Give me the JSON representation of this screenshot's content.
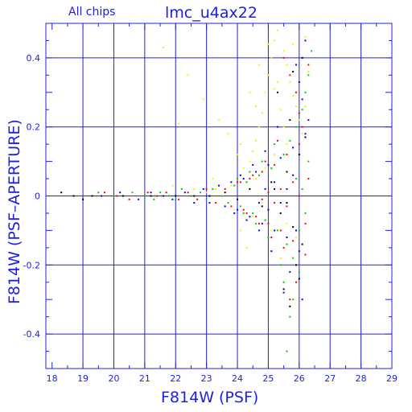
{
  "chart_data": {
    "type": "scatter",
    "title": "lmc_u4ax22",
    "subtitle": "All chips",
    "xlabel": "F814W (PSF)",
    "ylabel": "F814W (PSF–APERTURE)",
    "xlim": [
      17.8,
      29
    ],
    "ylim": [
      -0.5,
      0.5
    ],
    "x_ticks": [
      18,
      19,
      20,
      21,
      22,
      23,
      24,
      25,
      26,
      27,
      28,
      29
    ],
    "y_ticks": [
      -0.4,
      -0.2,
      0,
      0.2,
      0.4
    ],
    "x_tick_labels": [
      "18",
      "19",
      "20",
      "21",
      "22",
      "23",
      "24",
      "25",
      "26",
      "27",
      "28",
      "29"
    ],
    "y_tick_labels": [
      "-0.4",
      "-0.2",
      "0",
      "0.2",
      "0.4"
    ],
    "grid": true,
    "colors": {
      "axis": "#2020e0",
      "grid": "#2020e0",
      "background": "#ffffff"
    },
    "series": [
      {
        "color": "#ffee00",
        "points": [
          [
            23.3,
            0.02
          ],
          [
            23.8,
            0.03
          ],
          [
            24.0,
            0.05
          ],
          [
            24.2,
            0.08
          ],
          [
            24.4,
            0.1
          ],
          [
            24.5,
            0.13
          ],
          [
            24.6,
            0.16
          ],
          [
            24.7,
            0.2
          ],
          [
            24.8,
            0.24
          ],
          [
            24.9,
            0.3
          ],
          [
            25.0,
            0.35
          ],
          [
            25.1,
            0.4
          ],
          [
            25.2,
            0.45
          ],
          [
            25.3,
            0.48
          ],
          [
            25.5,
            0.42
          ],
          [
            25.6,
            0.38
          ],
          [
            25.7,
            0.33
          ],
          [
            25.8,
            0.29
          ],
          [
            25.9,
            0.26
          ],
          [
            26.0,
            0.22
          ],
          [
            26.1,
            0.18
          ],
          [
            26.2,
            0.46
          ],
          [
            26.3,
            0.36
          ],
          [
            25.4,
            0.25
          ],
          [
            25.5,
            0.2
          ],
          [
            25.6,
            0.15
          ],
          [
            25.2,
            0.12
          ],
          [
            24.9,
            0.08
          ],
          [
            24.6,
            0.05
          ],
          [
            24.3,
            0.04
          ],
          [
            21.6,
            0.43
          ],
          [
            22.4,
            0.35
          ],
          [
            22.9,
            0.28
          ],
          [
            23.4,
            0.22
          ],
          [
            23.7,
            0.18
          ],
          [
            24.1,
            0.15
          ],
          [
            24.4,
            0.3
          ],
          [
            24.7,
            0.38
          ],
          [
            25.0,
            0.44
          ],
          [
            25.3,
            0.33
          ],
          [
            23.5,
            0.0
          ],
          [
            23.9,
            -0.04
          ],
          [
            24.1,
            -0.1
          ],
          [
            24.3,
            -0.15
          ],
          [
            24.5,
            -0.06
          ],
          [
            24.8,
            -0.02
          ],
          [
            25.1,
            -0.1
          ],
          [
            25.4,
            -0.18
          ],
          [
            25.6,
            -0.08
          ],
          [
            25.9,
            -0.12
          ],
          [
            26.2,
            0.26
          ],
          [
            25.8,
            0.44
          ],
          [
            25.2,
            0.31
          ],
          [
            24.6,
            0.26
          ],
          [
            24.0,
            0.12
          ],
          [
            22.1,
            0.21
          ],
          [
            21.9,
            0.03
          ],
          [
            22.6,
            0.02
          ],
          [
            23.0,
            0.01
          ],
          [
            23.2,
            0.05
          ]
        ]
      },
      {
        "color": "#00cc00",
        "points": [
          [
            19.5,
            0.01
          ],
          [
            20.0,
            0.0
          ],
          [
            20.6,
            0.01
          ],
          [
            21.0,
            0.0
          ],
          [
            21.3,
            -0.01
          ],
          [
            21.5,
            0.01
          ],
          [
            21.8,
            0.0
          ],
          [
            22.0,
            -0.01
          ],
          [
            22.2,
            0.02
          ],
          [
            22.5,
            0.0
          ],
          [
            22.8,
            0.01
          ],
          [
            23.0,
            -0.01
          ],
          [
            23.2,
            0.02
          ],
          [
            23.5,
            0.0
          ],
          [
            23.7,
            -0.02
          ],
          [
            23.9,
            0.03
          ],
          [
            24.1,
            -0.03
          ],
          [
            24.3,
            0.04
          ],
          [
            24.5,
            -0.05
          ],
          [
            24.7,
            0.06
          ],
          [
            24.9,
            -0.07
          ],
          [
            25.1,
            0.08
          ],
          [
            25.3,
            -0.1
          ],
          [
            25.5,
            0.12
          ],
          [
            25.6,
            -0.14
          ],
          [
            25.7,
            0.16
          ],
          [
            25.8,
            -0.18
          ],
          [
            25.9,
            0.2
          ],
          [
            26.0,
            -0.22
          ],
          [
            26.1,
            0.25
          ],
          [
            26.2,
            0.3
          ],
          [
            26.3,
            0.35
          ],
          [
            26.4,
            0.42
          ],
          [
            25.8,
            -0.3
          ],
          [
            25.7,
            -0.35
          ],
          [
            25.6,
            -0.45
          ],
          [
            25.4,
            -0.2
          ],
          [
            25.2,
            0.15
          ],
          [
            25.0,
            -0.12
          ],
          [
            24.8,
            0.1
          ],
          [
            24.6,
            -0.08
          ],
          [
            24.4,
            0.07
          ],
          [
            24.2,
            -0.05
          ],
          [
            24.0,
            0.05
          ],
          [
            26.3,
            0.1
          ],
          [
            26.2,
            -0.05
          ],
          [
            26.1,
            0.02
          ],
          [
            26.0,
            -0.1
          ],
          [
            25.9,
            0.05
          ],
          [
            25.5,
            -0.25
          ]
        ]
      },
      {
        "color": "#0000ff",
        "points": [
          [
            19.0,
            -0.01
          ],
          [
            19.6,
            0.0
          ],
          [
            20.2,
            0.01
          ],
          [
            20.8,
            -0.01
          ],
          [
            21.2,
            0.01
          ],
          [
            21.6,
            0.0
          ],
          [
            21.9,
            -0.01
          ],
          [
            22.3,
            0.01
          ],
          [
            22.6,
            -0.02
          ],
          [
            22.9,
            0.02
          ],
          [
            23.1,
            -0.02
          ],
          [
            23.4,
            0.03
          ],
          [
            23.6,
            -0.03
          ],
          [
            23.8,
            0.04
          ],
          [
            24.0,
            -0.04
          ],
          [
            24.2,
            0.05
          ],
          [
            24.4,
            -0.06
          ],
          [
            24.6,
            0.07
          ],
          [
            24.8,
            -0.08
          ],
          [
            25.0,
            0.09
          ],
          [
            25.2,
            -0.1
          ],
          [
            25.4,
            0.11
          ],
          [
            25.6,
            -0.12
          ],
          [
            25.8,
            0.14
          ],
          [
            26.0,
            -0.16
          ],
          [
            26.2,
            0.18
          ],
          [
            26.3,
            0.22
          ],
          [
            26.1,
            0.28
          ],
          [
            26.0,
            0.33
          ],
          [
            25.9,
            0.38
          ],
          [
            25.7,
            -0.22
          ],
          [
            25.5,
            -0.28
          ],
          [
            25.3,
            0.2
          ],
          [
            25.1,
            -0.16
          ],
          [
            24.9,
            0.13
          ],
          [
            24.7,
            -0.1
          ],
          [
            24.5,
            0.09
          ],
          [
            24.3,
            -0.07
          ],
          [
            24.1,
            0.06
          ],
          [
            23.9,
            -0.05
          ],
          [
            26.2,
            0.45
          ],
          [
            26.1,
            -0.3
          ],
          [
            25.9,
            -0.1
          ],
          [
            25.8,
            0.06
          ],
          [
            25.6,
            0.02
          ],
          [
            25.4,
            -0.02
          ],
          [
            25.2,
            0.04
          ],
          [
            25.0,
            -0.04
          ],
          [
            24.9,
            0.02
          ],
          [
            24.7,
            -0.02
          ]
        ]
      },
      {
        "color": "#ff0000",
        "points": [
          [
            19.7,
            0.01
          ],
          [
            20.1,
            0.0
          ],
          [
            20.5,
            -0.01
          ],
          [
            21.1,
            0.01
          ],
          [
            21.4,
            0.0
          ],
          [
            21.7,
            0.01
          ],
          [
            22.1,
            -0.01
          ],
          [
            22.4,
            0.01
          ],
          [
            22.7,
            -0.01
          ],
          [
            23.0,
            0.02
          ],
          [
            23.3,
            -0.02
          ],
          [
            23.6,
            0.02
          ],
          [
            23.8,
            -0.03
          ],
          [
            24.0,
            0.04
          ],
          [
            24.2,
            -0.04
          ],
          [
            24.4,
            0.05
          ],
          [
            24.6,
            -0.06
          ],
          [
            24.8,
            0.07
          ],
          [
            25.0,
            -0.08
          ],
          [
            25.2,
            0.09
          ],
          [
            25.4,
            -0.1
          ],
          [
            25.6,
            0.12
          ],
          [
            25.8,
            -0.13
          ],
          [
            26.0,
            0.15
          ],
          [
            26.2,
            -0.17
          ],
          [
            26.1,
            0.2
          ],
          [
            26.0,
            0.24
          ],
          [
            25.9,
            0.3
          ],
          [
            25.7,
            0.35
          ],
          [
            25.5,
            0.4
          ],
          [
            25.9,
            -0.25
          ],
          [
            25.7,
            -0.3
          ],
          [
            25.5,
            -0.15
          ],
          [
            25.3,
            0.16
          ],
          [
            25.1,
            -0.12
          ],
          [
            24.9,
            0.1
          ],
          [
            24.7,
            -0.08
          ],
          [
            24.5,
            0.06
          ],
          [
            24.3,
            -0.05
          ],
          [
            24.1,
            0.04
          ],
          [
            26.3,
            0.05
          ],
          [
            26.2,
            -0.08
          ],
          [
            26.0,
            0.0
          ],
          [
            25.8,
            0.04
          ],
          [
            25.6,
            -0.03
          ],
          [
            25.4,
            0.02
          ],
          [
            25.2,
            -0.02
          ],
          [
            25.0,
            0.01
          ],
          [
            24.8,
            -0.01
          ],
          [
            26.3,
            0.38
          ]
        ]
      },
      {
        "color": "#000000",
        "points": [
          [
            18.3,
            0.01
          ],
          [
            18.7,
            0.0
          ],
          [
            19.0,
            -0.01
          ],
          [
            19.3,
            0.0
          ],
          [
            20.3,
            0.0
          ],
          [
            21.2,
            0.0
          ],
          [
            22.0,
            0.0
          ],
          [
            22.6,
            0.0
          ],
          [
            23.1,
            0.0
          ],
          [
            23.6,
            0.01
          ],
          [
            24.0,
            -0.01
          ],
          [
            24.4,
            0.02
          ],
          [
            24.8,
            -0.03
          ],
          [
            25.1,
            0.04
          ],
          [
            25.4,
            -0.05
          ],
          [
            25.6,
            0.07
          ],
          [
            25.8,
            -0.09
          ],
          [
            26.0,
            0.12
          ],
          [
            26.1,
            -0.14
          ],
          [
            26.2,
            0.17
          ],
          [
            25.9,
            -0.2
          ],
          [
            25.7,
            0.22
          ],
          [
            25.5,
            -0.27
          ],
          [
            25.3,
            0.3
          ],
          [
            25.7,
            -0.32
          ],
          [
            25.8,
            0.36
          ],
          [
            26.0,
            -0.24
          ],
          [
            26.1,
            0.4
          ],
          [
            25.6,
            -0.02
          ],
          [
            25.2,
            0.02
          ]
        ]
      }
    ]
  }
}
